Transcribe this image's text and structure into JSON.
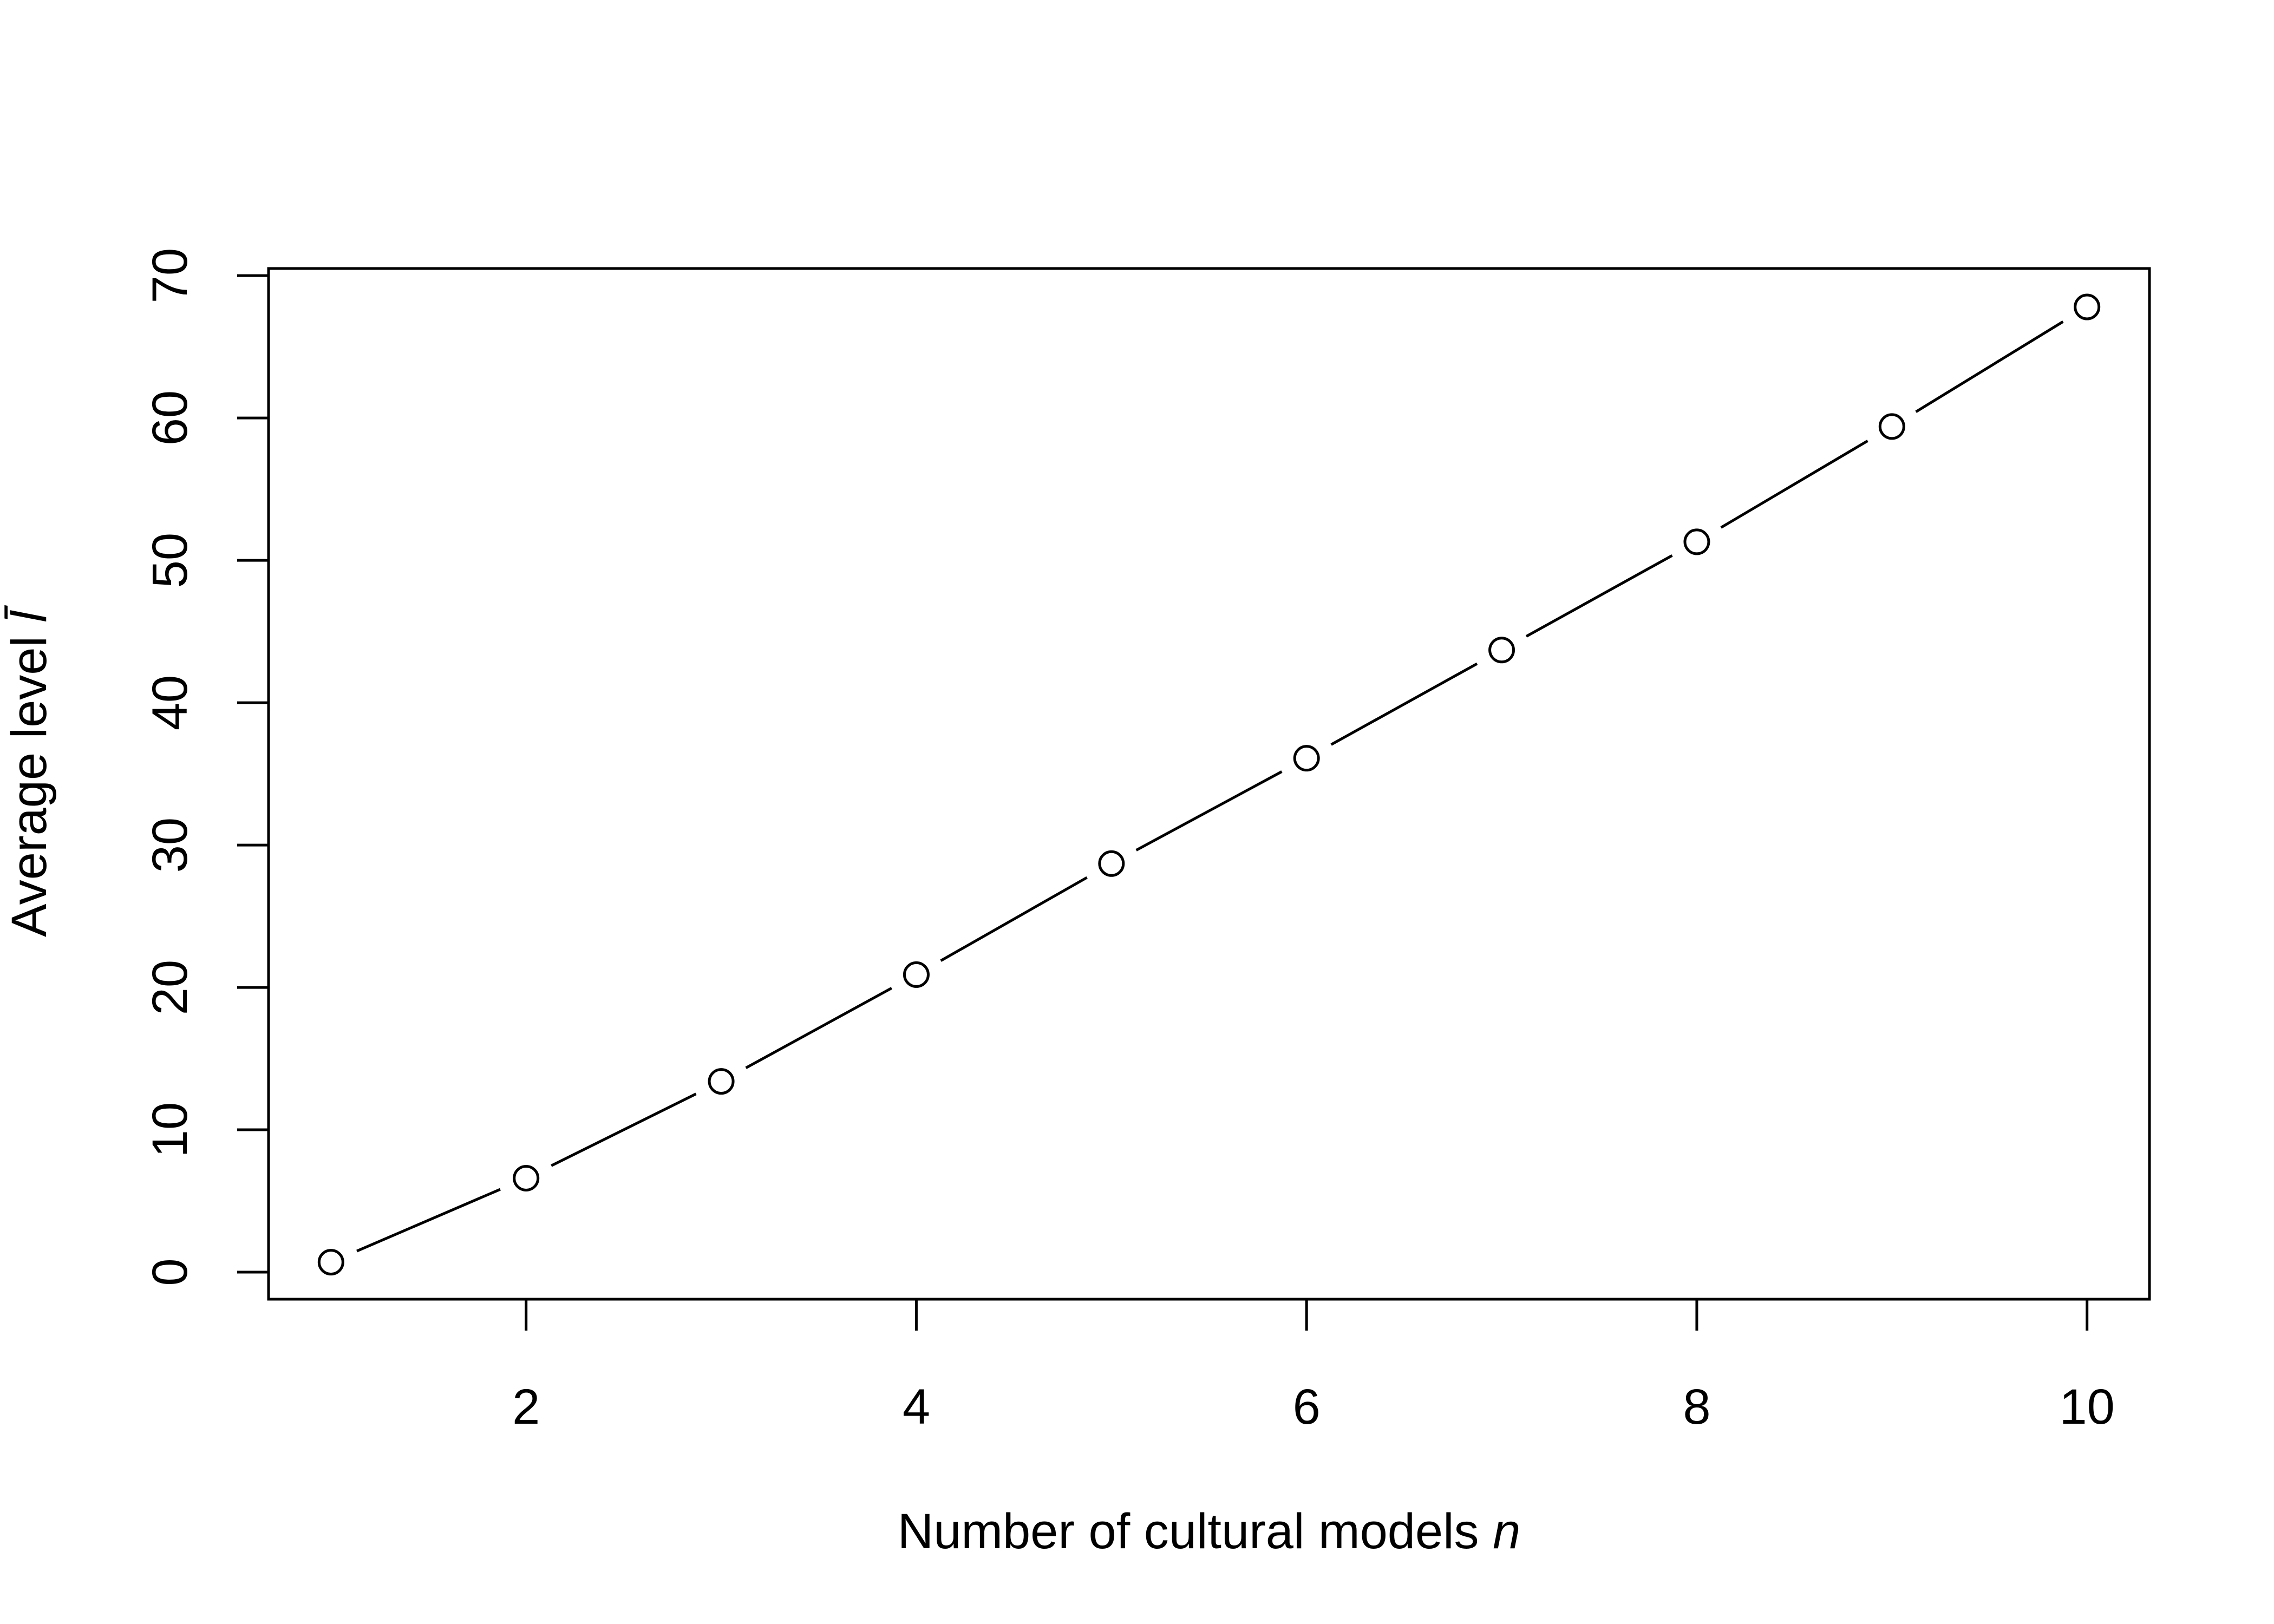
{
  "chart_data": {
    "type": "line",
    "title": "",
    "xlabel": {
      "prefix": "Number of cultural models ",
      "symbol": "n"
    },
    "ylabel": {
      "prefix": "Average level ",
      "symbol": "l̄"
    },
    "xlim": [
      0.68,
      10.32
    ],
    "ylim": [
      -1.9,
      70.5
    ],
    "xticks": [
      2,
      4,
      6,
      8,
      10
    ],
    "yticks": [
      0,
      10,
      20,
      30,
      40,
      50,
      60,
      70
    ],
    "grid": false,
    "legend": "none",
    "marker": "open-circle",
    "line_color": "#000000",
    "series": [
      {
        "x": [
          1,
          2,
          3,
          4,
          5,
          6,
          7,
          8,
          9,
          10
        ],
        "y": [
          0.7,
          6.6,
          13.4,
          20.9,
          28.7,
          36.1,
          43.7,
          51.3,
          59.4,
          67.8
        ]
      }
    ]
  }
}
